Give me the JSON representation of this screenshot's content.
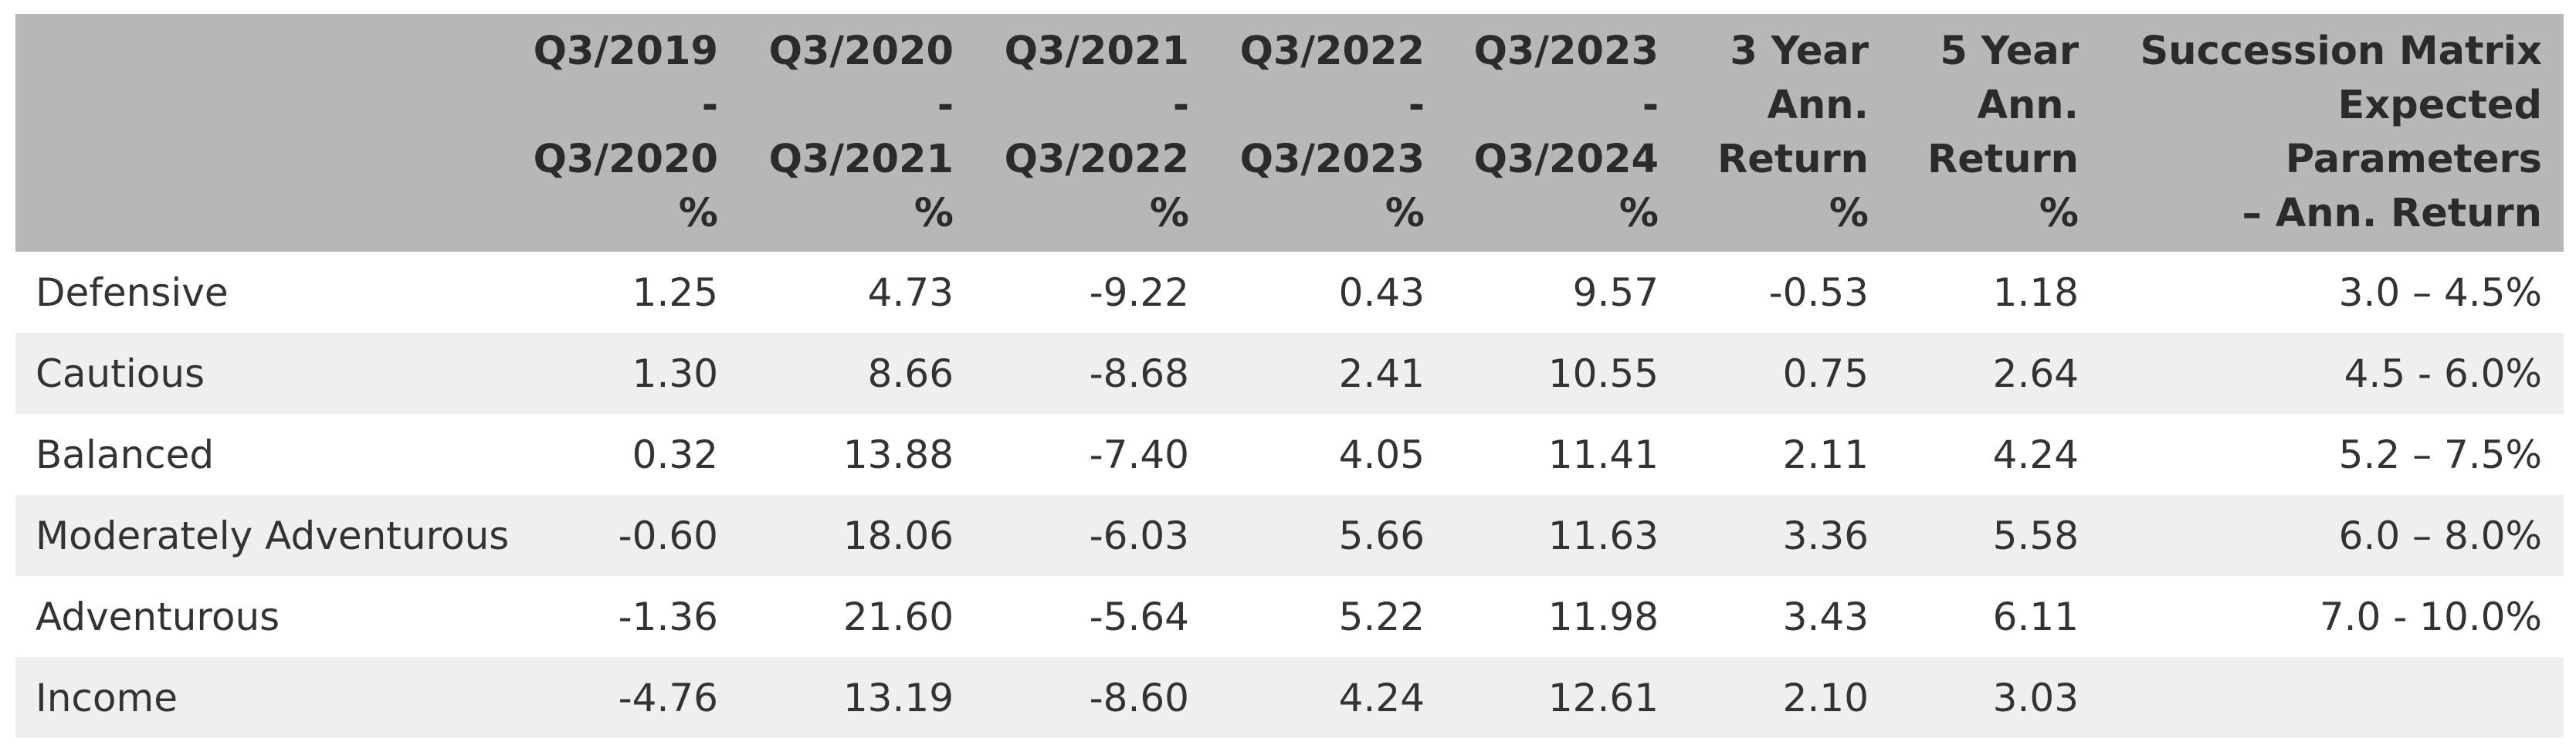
{
  "table": {
    "headers": [
      "",
      "Q3/2019\n-\nQ3/2020\n%",
      "Q3/2020\n-\nQ3/2021\n%",
      "Q3/2021\n-\nQ3/2022\n%",
      "Q3/2022\n-\nQ3/2023\n%",
      "Q3/2023\n-\nQ3/2024\n%",
      "3 Year\nAnn.\nReturn\n%",
      "5 Year\nAnn.\nReturn\n%",
      "Succession Matrix\nExpected Parameters\n– Ann. Return"
    ],
    "rows": [
      [
        "Defensive",
        "1.25",
        "4.73",
        "-9.22",
        "0.43",
        "9.57",
        "-0.53",
        "1.18",
        "3.0 – 4.5%"
      ],
      [
        "Cautious",
        "1.30",
        "8.66",
        "-8.68",
        "2.41",
        "10.55",
        "0.75",
        "2.64",
        "4.5 - 6.0%"
      ],
      [
        "Balanced",
        "0.32",
        "13.88",
        "-7.40",
        "4.05",
        "11.41",
        "2.11",
        "4.24",
        "5.2 – 7.5%"
      ],
      [
        "Moderately Adventurous",
        "-0.60",
        "18.06",
        "-6.03",
        "5.66",
        "11.63",
        "3.36",
        "5.58",
        "6.0 – 8.0%"
      ],
      [
        "Adventurous",
        "-1.36",
        "21.60",
        "-5.64",
        "5.22",
        "11.98",
        "3.43",
        "6.11",
        "7.0 - 10.0%"
      ],
      [
        "Income",
        "-4.76",
        "13.19",
        "-8.60",
        "4.24",
        "12.61",
        "2.10",
        "3.03",
        ""
      ]
    ]
  },
  "colors": {
    "header_bg": "#b7b7b7",
    "row_alt_bg": "#efefef",
    "row_bg": "#ffffff",
    "text": "#333333"
  }
}
